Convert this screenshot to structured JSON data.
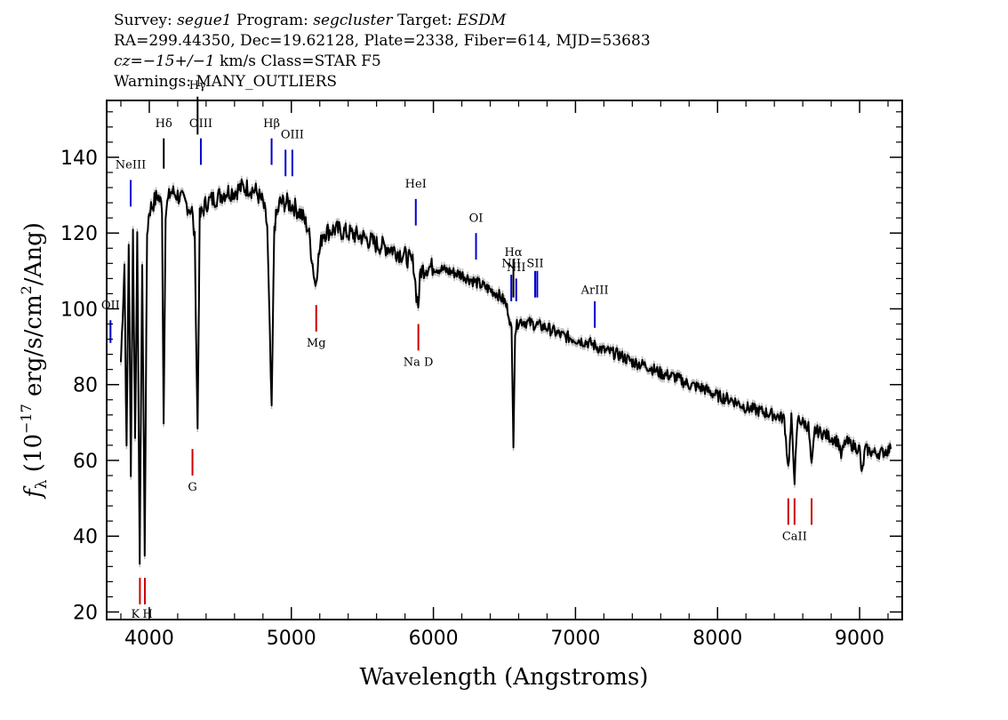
{
  "header": {
    "survey_label": "Survey:",
    "survey": "segue1",
    "program_label": "Program:",
    "program": "segcluster",
    "target_label": "Target:",
    "target": "ESDM",
    "line2": "RA=299.44350, Dec=19.62128, Plate=2338, Fiber=614, MJD=53683",
    "cz": "cz=−15+/−1",
    "cz_rest": " km/s Class=STAR F5",
    "warnings": "Warnings: MANY_OUTLIERS"
  },
  "chart_data": {
    "type": "line",
    "xlabel": "Wavelength (Angstroms)",
    "ylabel": "f_λ (10^-17 erg/s/cm^2/Ang)",
    "xlim": [
      3700,
      9300
    ],
    "ylim": [
      18,
      155
    ],
    "x_ticks": [
      4000,
      5000,
      6000,
      7000,
      8000,
      9000
    ],
    "y_ticks": [
      20,
      40,
      60,
      80,
      100,
      120,
      140
    ],
    "series": [
      {
        "color": "#000000",
        "points": [
          [
            3800,
            86
          ],
          [
            3825,
            112
          ],
          [
            3840,
            62
          ],
          [
            3855,
            118
          ],
          [
            3870,
            58
          ],
          [
            3885,
            120
          ],
          [
            3900,
            66
          ],
          [
            3915,
            118
          ],
          [
            3933,
            33
          ],
          [
            3950,
            112
          ],
          [
            3968,
            36
          ],
          [
            3985,
            120
          ],
          [
            4000,
            126
          ],
          [
            4030,
            128
          ],
          [
            4060,
            130
          ],
          [
            4090,
            127
          ],
          [
            4101,
            70
          ],
          [
            4115,
            126
          ],
          [
            4150,
            131
          ],
          [
            4200,
            130
          ],
          [
            4250,
            128
          ],
          [
            4300,
            126
          ],
          [
            4320,
            118
          ],
          [
            4340,
            68
          ],
          [
            4355,
            124
          ],
          [
            4400,
            128
          ],
          [
            4450,
            129
          ],
          [
            4500,
            130
          ],
          [
            4550,
            131
          ],
          [
            4600,
            131
          ],
          [
            4650,
            132
          ],
          [
            4700,
            132
          ],
          [
            4750,
            131
          ],
          [
            4800,
            128
          ],
          [
            4830,
            122
          ],
          [
            4861,
            72
          ],
          [
            4880,
            122
          ],
          [
            4920,
            128
          ],
          [
            4970,
            128
          ],
          [
            5020,
            127
          ],
          [
            5070,
            125
          ],
          [
            5120,
            121
          ],
          [
            5150,
            112
          ],
          [
            5170,
            106
          ],
          [
            5185,
            112
          ],
          [
            5220,
            120
          ],
          [
            5300,
            121
          ],
          [
            5400,
            120
          ],
          [
            5500,
            119
          ],
          [
            5600,
            117
          ],
          [
            5700,
            116
          ],
          [
            5800,
            114
          ],
          [
            5860,
            112
          ],
          [
            5880,
            104
          ],
          [
            5893,
            101
          ],
          [
            5910,
            110
          ],
          [
            5950,
            111
          ],
          [
            6000,
            111
          ],
          [
            6100,
            110
          ],
          [
            6200,
            109
          ],
          [
            6300,
            107
          ],
          [
            6400,
            105
          ],
          [
            6450,
            104
          ],
          [
            6500,
            102
          ],
          [
            6530,
            99
          ],
          [
            6550,
            94
          ],
          [
            6563,
            65
          ],
          [
            6575,
            94
          ],
          [
            6600,
            97
          ],
          [
            6700,
            96
          ],
          [
            6800,
            95
          ],
          [
            6900,
            93
          ],
          [
            7000,
            92
          ],
          [
            7100,
            91
          ],
          [
            7200,
            89
          ],
          [
            7300,
            88
          ],
          [
            7400,
            86
          ],
          [
            7500,
            85
          ],
          [
            7600,
            83
          ],
          [
            7700,
            82
          ],
          [
            7800,
            80
          ],
          [
            7900,
            79
          ],
          [
            8000,
            77
          ],
          [
            8100,
            76
          ],
          [
            8200,
            74
          ],
          [
            8300,
            73
          ],
          [
            8400,
            72
          ],
          [
            8470,
            71
          ],
          [
            8498,
            58
          ],
          [
            8520,
            71
          ],
          [
            8542,
            55
          ],
          [
            8565,
            71
          ],
          [
            8600,
            70
          ],
          [
            8640,
            69
          ],
          [
            8662,
            58
          ],
          [
            8685,
            68
          ],
          [
            8750,
            67
          ],
          [
            8800,
            66
          ],
          [
            8850,
            65
          ],
          [
            8870,
            61
          ],
          [
            8900,
            65
          ],
          [
            8950,
            64
          ],
          [
            9000,
            63
          ],
          [
            9015,
            56
          ],
          [
            9040,
            63
          ],
          [
            9100,
            62
          ],
          [
            9150,
            62
          ],
          [
            9220,
            63
          ]
        ]
      }
    ],
    "emission_lines": [
      {
        "label": "OII",
        "x": 3727,
        "y1": 91,
        "y2": 97,
        "color": "#0000cc",
        "label_y": 100
      },
      {
        "label": "NeIII",
        "x": 3869,
        "y1": 127,
        "y2": 134,
        "color": "#0000cc",
        "label_y": 137
      },
      {
        "label": "Hδ",
        "x": 4102,
        "y1": 137,
        "y2": 145,
        "color": "#000000",
        "label_y": 148
      },
      {
        "label": "Hγ",
        "x": 4340,
        "y1": 146,
        "y2": 156,
        "color": "#000000",
        "label_y": 158
      },
      {
        "label": "OIII",
        "x": 4363,
        "y1": 138,
        "y2": 145,
        "color": "#0000cc",
        "label_y": 148
      },
      {
        "label": "Hβ",
        "x": 4861,
        "y1": 138,
        "y2": 145,
        "color": "#0000cc",
        "label_y": 148
      },
      {
        "label": "",
        "x": 4959,
        "y1": 135,
        "y2": 142,
        "color": "#0000cc"
      },
      {
        "label": "OIII",
        "x": 5007,
        "y1": 135,
        "y2": 142,
        "color": "#0000cc",
        "label_y": 145
      },
      {
        "label": "HeI",
        "x": 5876,
        "y1": 122,
        "y2": 129,
        "color": "#0000cc",
        "label_y": 132
      },
      {
        "label": "OI",
        "x": 6300,
        "y1": 113,
        "y2": 120,
        "color": "#0000cc",
        "label_y": 123
      },
      {
        "label": "NII",
        "x": 6548,
        "y1": 102,
        "y2": 109,
        "color": "#0000cc",
        "label_y": 111
      },
      {
        "label": "Hα",
        "x": 6563,
        "y1": 103,
        "y2": 113,
        "color": "#000000",
        "label_y": 114
      },
      {
        "label": "NII",
        "x": 6583,
        "y1": 102,
        "y2": 108,
        "color": "#0000cc",
        "label_y": 110
      },
      {
        "label": "SII",
        "x": 6716,
        "y1": 103,
        "y2": 110,
        "color": "#0000cc",
        "label_y": 111
      },
      {
        "label": "",
        "x": 6731,
        "y1": 103,
        "y2": 110,
        "color": "#0000cc"
      },
      {
        "label": "ArIII",
        "x": 7136,
        "y1": 95,
        "y2": 102,
        "color": "#0000cc",
        "label_y": 104
      }
    ],
    "absorption_lines": [
      {
        "label": "K",
        "x": 3934,
        "y1": 22,
        "y2": 29,
        "color": "#cc0000",
        "label_y": 18.5,
        "label_dx": -5
      },
      {
        "label": "H",
        "x": 3969,
        "y1": 22,
        "y2": 29,
        "color": "#cc0000",
        "label_y": 18.5,
        "label_dx": 3
      },
      {
        "label": "G",
        "x": 4304,
        "y1": 56,
        "y2": 63,
        "color": "#cc0000",
        "label_y": 52
      },
      {
        "label": "Mg",
        "x": 5175,
        "y1": 94,
        "y2": 101,
        "color": "#cc0000",
        "label_y": 90
      },
      {
        "label": "Na D",
        "x": 5894,
        "y1": 89,
        "y2": 96,
        "color": "#cc0000",
        "label_y": 85
      },
      {
        "label": "",
        "x": 8498,
        "y1": 43,
        "y2": 50,
        "color": "#cc0000"
      },
      {
        "label": "CaII",
        "x": 8542,
        "y1": 43,
        "y2": 50,
        "color": "#cc0000",
        "label_y": 39
      },
      {
        "label": "",
        "x": 8662,
        "y1": 43,
        "y2": 50,
        "color": "#cc0000"
      }
    ]
  }
}
